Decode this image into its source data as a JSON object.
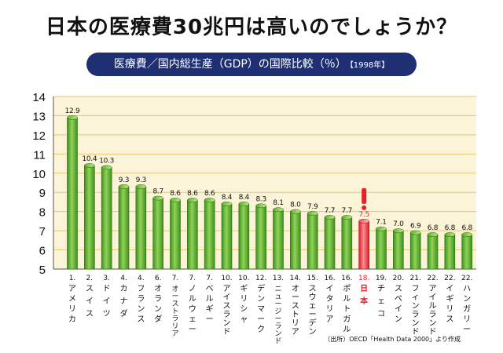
{
  "title": "日本の医療費30兆円は高いのでしょうか？",
  "subtitle": "医療費／国内総生産（GDP）の国際比較（％）",
  "subtitle_year": "【1998年】",
  "source": "（出所）OECD「Health Data 2000」より作成",
  "chart_data": {
    "type": "bar",
    "title": "医療費／国内総生産（GDP）の国際比較（％）【1998年】",
    "xlabel": "",
    "ylabel": "",
    "ylim": [
      5,
      14
    ],
    "yticks": [
      5,
      6,
      7,
      8,
      9,
      10,
      11,
      12,
      13,
      14
    ],
    "grid": true,
    "highlight_index": 17,
    "highlight_color": "#e8202a",
    "bar_color": "#5aa82a",
    "ranks": [
      "1.",
      "2.",
      "3.",
      "4.",
      "4.",
      "6.",
      "7.",
      "7.",
      "7.",
      "10.",
      "10.",
      "12.",
      "13.",
      "14.",
      "15.",
      "16.",
      "16.",
      "18.",
      "19.",
      "20.",
      "21.",
      "22.",
      "22.",
      "22."
    ],
    "categories": [
      "アメリカ",
      "スイス",
      "ドイツ",
      "カナダ",
      "フランス",
      "オランダ",
      "オーストラリア",
      "ノルウェー",
      "ベルギー",
      "アイスランド",
      "ギリシャ",
      "デンマーク",
      "ニュージーランド",
      "オーストリア",
      "スウェーデン",
      "イタリア",
      "ポルトガル",
      "日本",
      "チェコ",
      "スペイン",
      "フィンランド",
      "アイルランド",
      "イギリス",
      "ハンガリー"
    ],
    "values": [
      12.9,
      10.4,
      10.3,
      9.3,
      9.3,
      8.7,
      8.6,
      8.6,
      8.6,
      8.4,
      8.4,
      8.3,
      8.1,
      8.0,
      7.9,
      7.7,
      7.7,
      7.5,
      7.1,
      7.0,
      6.9,
      6.8,
      6.8,
      6.8
    ],
    "value_labels": [
      "12.9",
      "10.4",
      "10.3",
      "9.3",
      "9.3",
      "8.7",
      "8.6",
      "8.6",
      "8.6",
      "8.4",
      "8.4",
      "8.3",
      "8.1",
      "8.0",
      "7.9",
      "7.7",
      "7.7",
      "7.5",
      "7.1",
      "7.0",
      "6.9",
      "6.8",
      "6.8",
      "6.8"
    ]
  }
}
